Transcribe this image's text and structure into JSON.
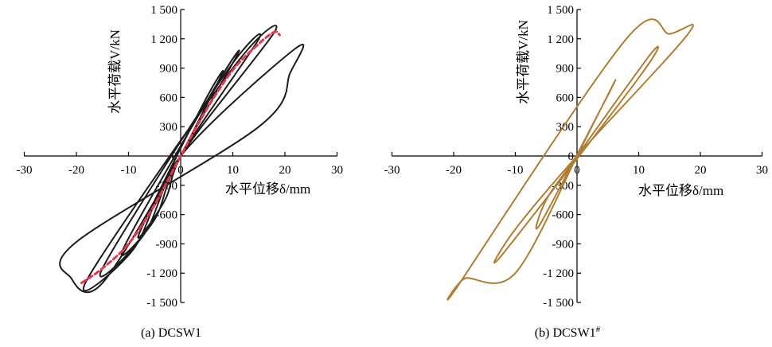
{
  "chart_data": [
    {
      "type": "line",
      "panel_label": "(a) DCSW1",
      "xlabel": "水平位移δ/mm",
      "ylabel": "水平荷载V/kN",
      "xlim": [
        -30,
        30
      ],
      "ylim": [
        -1500,
        1500
      ],
      "xticks": [
        -30,
        -20,
        -10,
        0,
        10,
        20,
        30
      ],
      "yticks": [
        -1500,
        -1200,
        -900,
        -600,
        -300,
        0,
        300,
        600,
        900,
        1200,
        1500
      ],
      "ytick_labels": [
        "-1 500",
        "-1 200",
        "-900",
        "-600",
        "-300",
        "0",
        "300",
        "600",
        "900",
        "1 200",
        "1 500"
      ],
      "series": [
        {
          "style": "solid",
          "color": "#1c1c1c",
          "x": [
            0,
            5,
            2,
            -5,
            0,
            8,
            4,
            -8,
            -3,
            0,
            11,
            6,
            -11,
            -5,
            0,
            15,
            8,
            -15,
            -7,
            0,
            18,
            10,
            -18,
            -9,
            0,
            22,
            21,
            15,
            -20,
            -21,
            -15,
            0
          ],
          "y": [
            0,
            500,
            300,
            -500,
            0,
            850,
            500,
            -800,
            -450,
            0,
            1050,
            650,
            -950,
            -650,
            0,
            1200,
            800,
            -1150,
            -800,
            0,
            1270,
            900,
            -1270,
            -950,
            0,
            1100,
            850,
            300,
            -880,
            -1250,
            -1300,
            0
          ]
        },
        {
          "style": "dashed",
          "color": "#e8364a",
          "x": [
            -19,
            -15,
            -10,
            -5,
            0,
            5,
            10,
            15,
            18,
            19
          ],
          "y": [
            -1300,
            -1150,
            -900,
            -500,
            0,
            480,
            880,
            1150,
            1270,
            1240
          ]
        }
      ]
    },
    {
      "type": "line",
      "panel_label": "(b) DCSW1",
      "panel_label_sup": "#",
      "xlabel": "水平位移δ/mm",
      "ylabel": "水平荷载V/kN",
      "xlim": [
        -30,
        30
      ],
      "ylim": [
        -1500,
        1500
      ],
      "xticks": [
        -30,
        -20,
        -10,
        0,
        10,
        20,
        30
      ],
      "yticks": [
        -1500,
        -1200,
        -900,
        -600,
        -300,
        0,
        300,
        600,
        900,
        1200,
        1500
      ],
      "ytick_labels": [
        "-1 500",
        "-1 200",
        "-900",
        "-600",
        "-300",
        "0",
        "300",
        "600",
        "900",
        "1 200",
        "1 500"
      ],
      "series": [
        {
          "style": "solid",
          "color": "#b07d32",
          "x": [
            0,
            6,
            4,
            -6,
            -5,
            0,
            12,
            10,
            -12,
            -10,
            0,
            18,
            15,
            8,
            -19,
            -18,
            -10,
            0
          ],
          "y": [
            0,
            750,
            500,
            -700,
            -450,
            0,
            1050,
            800,
            -1000,
            -750,
            0,
            1250,
            1250,
            1200,
            -1300,
            -1250,
            -1200,
            0
          ]
        }
      ]
    }
  ]
}
